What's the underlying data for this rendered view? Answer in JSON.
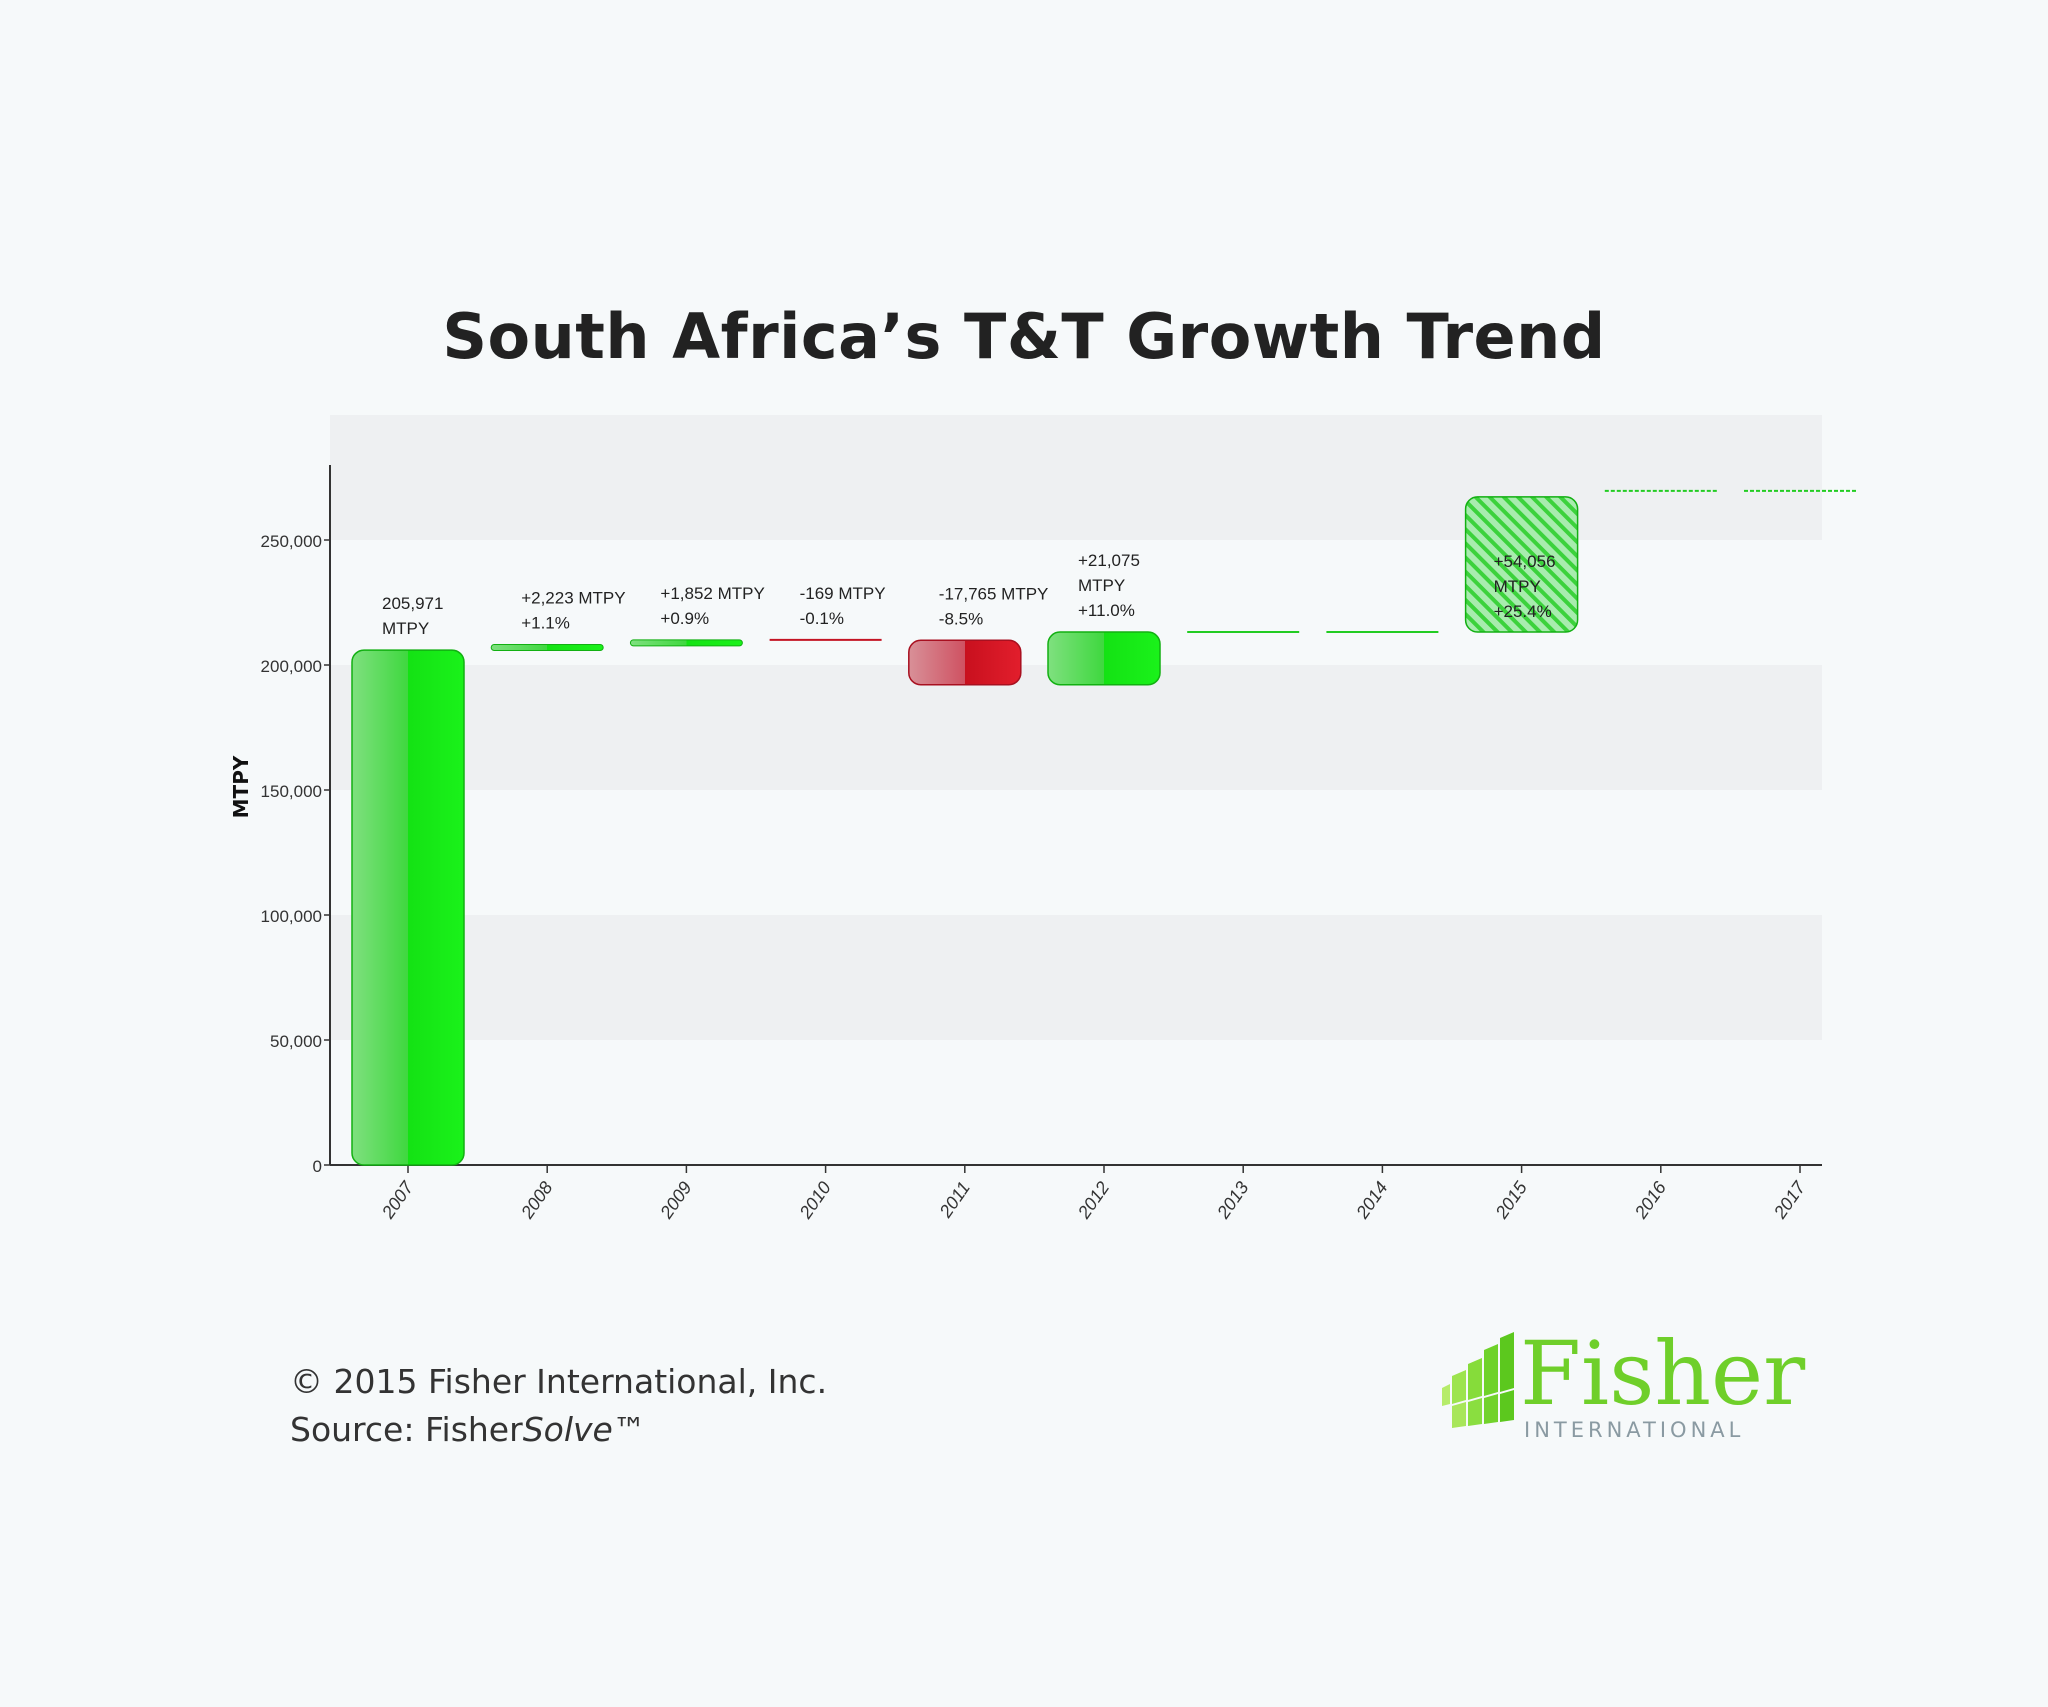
{
  "title": "South Africa’s T&T Growth Trend",
  "footer": {
    "copyright": "© 2015 Fisher International, Inc.",
    "source_prefix": "Source: Fisher",
    "source_italic": "Solve",
    "source_suffix": "™"
  },
  "logo": {
    "word": "Fisher",
    "sub": "INTERNATIONAL"
  },
  "colors": {
    "increase": "#1ee61e",
    "decrease": "#d81e2c",
    "text": "#222222"
  },
  "chart_data": {
    "type": "bar",
    "subtype": "waterfall",
    "ylabel": "MTPY",
    "xlabel": "",
    "ylim": [
      0,
      280000
    ],
    "yticks": [
      0,
      50000,
      100000,
      150000,
      200000,
      250000
    ],
    "ytick_labels": [
      "0",
      "50,000",
      "100,000",
      "150,000",
      "200,000",
      "250,000"
    ],
    "categories": [
      "2007",
      "2008",
      "2009",
      "2010",
      "2011",
      "2012",
      "2013",
      "2014",
      "2015",
      "2016",
      "2017"
    ],
    "values": [
      205971,
      2223,
      1852,
      -169,
      -17765,
      21075,
      0,
      0,
      54056,
      0,
      0
    ],
    "styles": [
      "solid",
      "solid",
      "solid",
      "solid",
      "solid",
      "solid",
      "solid",
      "solid",
      "hatched",
      "dashed",
      "dashed"
    ],
    "labels": [
      [
        "205,971",
        "MTPY"
      ],
      [
        "+2,223 MTPY",
        "+1.1%"
      ],
      [
        "+1,852 MTPY",
        "+0.9%"
      ],
      [
        "-169 MTPY",
        "-0.1%"
      ],
      [
        "-17,765 MTPY",
        "-8.5%"
      ],
      [
        "+21,075",
        "MTPY",
        "+11.0%"
      ],
      [],
      [],
      [
        "+54,056",
        "MTPY",
        "+25.4%"
      ],
      [],
      []
    ],
    "grid": "horizontal bands"
  }
}
